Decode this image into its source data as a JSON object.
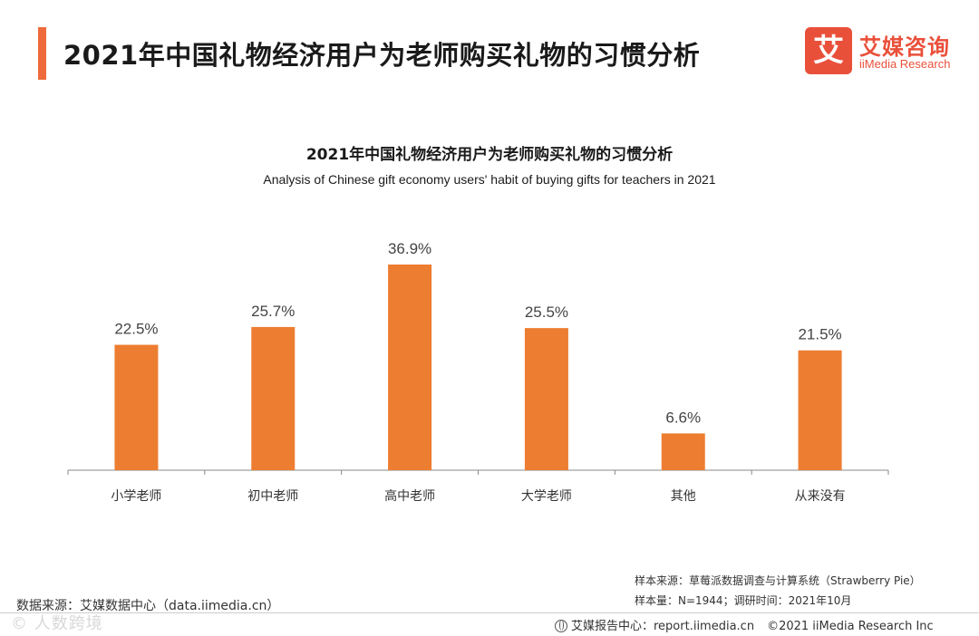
{
  "header": {
    "title": "2021年中国礼物经济用户为老师购买礼物的习惯分析",
    "brand_mark": "艾",
    "brand_name": "艾媒咨询",
    "brand_sub": "iiMedia Research"
  },
  "colors": {
    "accent": "#ee6a3a",
    "bar": "#ed7d31",
    "brand": "#e9503a"
  },
  "chart_data": {
    "type": "bar",
    "title": "2021年中国礼物经济用户为老师购买礼物的习惯分析",
    "subtitle": "Analysis of Chinese gift economy users' habit of buying gifts for teachers in 2021",
    "categories": [
      "小学老师",
      "初中老师",
      "高中老师",
      "大学老师",
      "其他",
      "从来没有"
    ],
    "values": [
      22.5,
      25.7,
      36.9,
      25.5,
      6.6,
      21.5
    ],
    "value_labels": [
      "22.5%",
      "25.7%",
      "36.9%",
      "25.5%",
      "6.6%",
      "21.5%"
    ],
    "unit": "%",
    "xlabel": "",
    "ylabel": "",
    "ylim": [
      0,
      36.9
    ],
    "grid": false,
    "legend": "none"
  },
  "footer": {
    "source": "数据来源：艾媒数据中心（data.iimedia.cn）",
    "sample_source": "样本来源：草莓派数据调查与计算系统（Strawberry Pie）",
    "sample_size": "样本量：N=1944；调研时间：2021年10月",
    "report_center": "艾媒报告中心：report.iimedia.cn",
    "copyright": "©2021  iiMedia Research  Inc",
    "watermark": "© 人数跨境"
  }
}
